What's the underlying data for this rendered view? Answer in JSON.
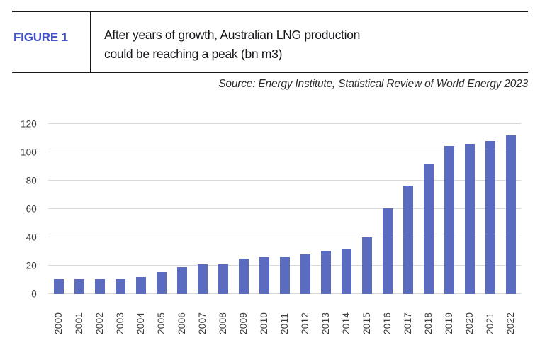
{
  "header": {
    "figure_label": "FIGURE 1",
    "title_line1": "After years of growth, Australian LNG production",
    "title_line2": "could be reaching a peak (bn m3)",
    "source": "Source: Energy Institute, Statistical Review of World Energy 2023"
  },
  "colors": {
    "bar": "#5B6BC0",
    "figure_label": "#4150C8",
    "gridline": "#D9D9D9",
    "axis_text": "#3F3F3F",
    "title_text": "#15151A",
    "rule": "#191919"
  },
  "chart_data": {
    "type": "bar",
    "title": "After years of growth, Australian LNG production could be reaching a peak (bn m3)",
    "categories": [
      "2000",
      "2001",
      "2002",
      "2003",
      "2004",
      "2005",
      "2006",
      "2007",
      "2008",
      "2009",
      "2010",
      "2011",
      "2012",
      "2013",
      "2014",
      "2015",
      "2016",
      "2017",
      "2018",
      "2019",
      "2020",
      "2021",
      "2022"
    ],
    "values": [
      10.5,
      10.5,
      10.5,
      10.5,
      12,
      15.5,
      19,
      21,
      21,
      25,
      26,
      26,
      28,
      30.5,
      31.5,
      40,
      60.5,
      76.5,
      91.5,
      104.5,
      106,
      108,
      112
    ],
    "xlabel": "",
    "ylabel": "",
    "ylim": [
      0,
      120
    ],
    "yticks": [
      0,
      20,
      40,
      60,
      80,
      100,
      120
    ],
    "grid": true,
    "legend": false,
    "bar_color": "#5B6BC0"
  }
}
